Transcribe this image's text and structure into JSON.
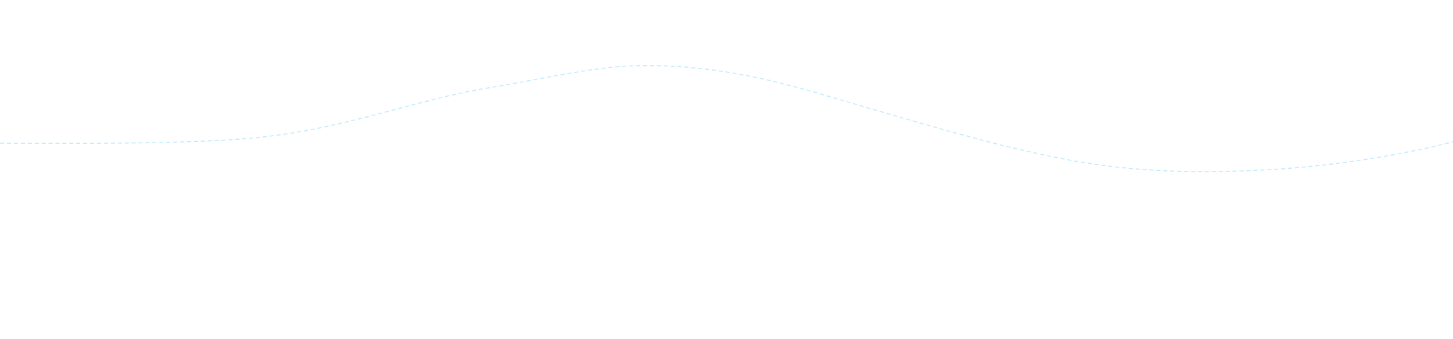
{
  "colors": {
    "background": "#ffffff",
    "wave_stroke": "#c6ecfb"
  }
}
